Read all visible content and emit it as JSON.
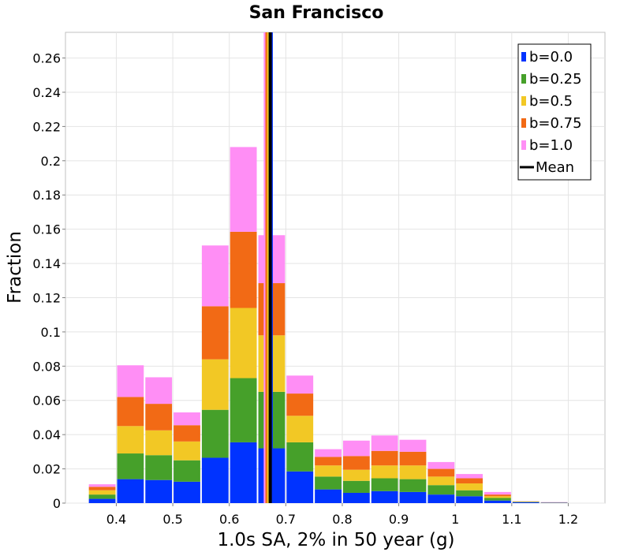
{
  "chart_data": {
    "type": "bar",
    "stacked": true,
    "title": "San Francisco",
    "xlabel": "1.0s SA, 2% in 50 year (g)",
    "ylabel": "Fraction",
    "xlim": [
      0.31,
      1.265
    ],
    "ylim": [
      0,
      0.275
    ],
    "grid": true,
    "legend_position": "top-right",
    "x_ticks": [
      0.4,
      0.5,
      0.6,
      0.7,
      0.8,
      0.9,
      1.0,
      1.1,
      1.2
    ],
    "x_tick_labels": [
      "0.4",
      "0.5",
      "0.6",
      "0.7",
      "0.8",
      "0.9",
      "1",
      "1.1",
      "1.2"
    ],
    "y_ticks": [
      0,
      0.02,
      0.04,
      0.06,
      0.08,
      0.1,
      0.12,
      0.14,
      0.16,
      0.18,
      0.2,
      0.22,
      0.24,
      0.26
    ],
    "y_tick_labels": [
      "0",
      "0.02",
      "0.04",
      "0.06",
      "0.08",
      "0.1",
      "0.12",
      "0.14",
      "0.16",
      "0.18",
      "0.2",
      "0.22",
      "0.24",
      "0.26"
    ],
    "bin_width": 0.05,
    "bin_starts": [
      0.35,
      0.4,
      0.45,
      0.5,
      0.55,
      0.6,
      0.65,
      0.7,
      0.75,
      0.8,
      0.85,
      0.9,
      0.95,
      1.0,
      1.05,
      1.1,
      1.15
    ],
    "series": [
      {
        "name": "b=0.0",
        "color": "#0033ff",
        "values": [
          0.0025,
          0.014,
          0.0135,
          0.0125,
          0.0265,
          0.0355,
          0.032,
          0.0185,
          0.008,
          0.006,
          0.007,
          0.0065,
          0.005,
          0.004,
          0.0015,
          0.0005,
          0.0002
        ]
      },
      {
        "name": "b=0.25",
        "color": "#46a02a",
        "values": [
          0.0025,
          0.015,
          0.0145,
          0.0125,
          0.028,
          0.0375,
          0.033,
          0.017,
          0.0075,
          0.007,
          0.0075,
          0.0075,
          0.0055,
          0.0035,
          0.0015,
          0.0002,
          0.0001
        ]
      },
      {
        "name": "b=0.5",
        "color": "#f2c825",
        "values": [
          0.0025,
          0.016,
          0.0145,
          0.011,
          0.0295,
          0.041,
          0.033,
          0.0155,
          0.0065,
          0.0065,
          0.0075,
          0.008,
          0.005,
          0.004,
          0.001,
          0.0002,
          0.0001
        ]
      },
      {
        "name": "b=0.75",
        "color": "#f26a15",
        "values": [
          0.002,
          0.017,
          0.0155,
          0.0095,
          0.031,
          0.0445,
          0.0305,
          0.013,
          0.005,
          0.008,
          0.0085,
          0.008,
          0.0045,
          0.003,
          0.001,
          0.0001,
          0.0001
        ]
      },
      {
        "name": "b=1.0",
        "color": "#ff8ef5",
        "values": [
          0.0015,
          0.0185,
          0.0155,
          0.0075,
          0.0355,
          0.0495,
          0.028,
          0.0105,
          0.0045,
          0.009,
          0.009,
          0.007,
          0.004,
          0.0025,
          0.0015,
          0.0001,
          0.0001
        ]
      }
    ],
    "mean_lines": [
      {
        "series": "b=1.0",
        "color": "#ff8ef5",
        "x": 0.663
      },
      {
        "series": "b=0.75",
        "color": "#f26a15",
        "x": 0.666
      },
      {
        "series": "b=0.5",
        "color": "#f2c825",
        "x": 0.669
      },
      {
        "series": "b=0.25",
        "color": "#46a02a",
        "x": 0.672
      },
      {
        "series": "b=0.0",
        "color": "#0033ff",
        "x": 0.675
      },
      {
        "series": "Mean",
        "color": "#000000",
        "x": 0.6725
      }
    ],
    "legend": [
      {
        "label": "b=0.0",
        "color": "#0033ff",
        "kind": "box"
      },
      {
        "label": "b=0.25",
        "color": "#46a02a",
        "kind": "box"
      },
      {
        "label": "b=0.5",
        "color": "#f2c825",
        "kind": "box"
      },
      {
        "label": "b=0.75",
        "color": "#f26a15",
        "kind": "box"
      },
      {
        "label": "b=1.0",
        "color": "#ff8ef5",
        "kind": "box"
      },
      {
        "label": "Mean",
        "color": "#000000",
        "kind": "line"
      }
    ]
  }
}
